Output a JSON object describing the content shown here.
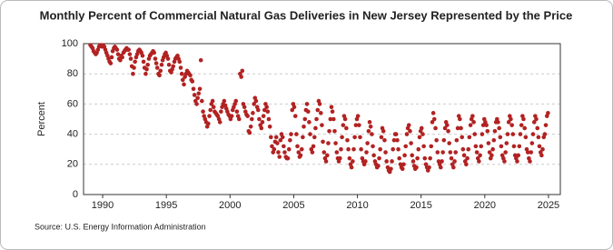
{
  "chart_data": {
    "type": "scatter",
    "title": "Monthly Percent of Commercial Natural Gas Deliveries in New Jersey Represented by the Price",
    "y_label": "Percent",
    "source": "Source: U.S. Energy Information Administration",
    "color": "#b22222",
    "grid": true,
    "xlim": [
      1988.5,
      2025.93
    ],
    "ylim": [
      0,
      100
    ],
    "xticks": [
      1990,
      1995,
      2000,
      2005,
      2010,
      2015,
      2020,
      2025
    ],
    "yticks": [
      0,
      20,
      40,
      60,
      80,
      100
    ],
    "x": [
      1989.04,
      1989.13,
      1989.21,
      1989.29,
      1989.38,
      1989.46,
      1989.54,
      1989.63,
      1989.71,
      1989.79,
      1989.88,
      1989.96,
      1990.04,
      1990.13,
      1990.21,
      1990.29,
      1990.38,
      1990.46,
      1990.54,
      1990.63,
      1990.71,
      1990.79,
      1990.88,
      1990.96,
      1991.04,
      1991.13,
      1991.21,
      1991.29,
      1991.38,
      1991.46,
      1991.54,
      1991.63,
      1991.71,
      1991.79,
      1991.88,
      1991.96,
      1992.04,
      1992.13,
      1992.21,
      1992.29,
      1992.38,
      1992.46,
      1992.54,
      1992.63,
      1992.71,
      1992.79,
      1992.88,
      1992.96,
      1993.04,
      1993.13,
      1993.21,
      1993.29,
      1993.38,
      1993.46,
      1993.54,
      1993.63,
      1993.71,
      1993.79,
      1993.88,
      1993.96,
      1994.04,
      1994.13,
      1994.21,
      1994.29,
      1994.38,
      1994.46,
      1994.54,
      1994.63,
      1994.71,
      1994.79,
      1994.88,
      1994.96,
      1995.04,
      1995.13,
      1995.21,
      1995.29,
      1995.38,
      1995.46,
      1995.54,
      1995.63,
      1995.71,
      1995.79,
      1995.88,
      1995.96,
      1996.04,
      1996.13,
      1996.21,
      1996.29,
      1996.38,
      1996.46,
      1996.54,
      1996.63,
      1996.71,
      1996.79,
      1996.88,
      1996.96,
      1997.04,
      1997.13,
      1997.21,
      1997.29,
      1997.38,
      1997.46,
      1997.54,
      1997.63,
      1997.71,
      1997.79,
      1997.88,
      1997.96,
      1998.04,
      1998.13,
      1998.21,
      1998.29,
      1998.38,
      1998.46,
      1998.54,
      1998.63,
      1998.71,
      1998.79,
      1998.88,
      1998.96,
      1999.04,
      1999.13,
      1999.21,
      1999.29,
      1999.38,
      1999.46,
      1999.54,
      1999.63,
      1999.71,
      1999.79,
      1999.88,
      1999.96,
      2000.04,
      2000.13,
      2000.21,
      2000.29,
      2000.38,
      2000.46,
      2000.54,
      2000.63,
      2000.71,
      2000.79,
      2000.88,
      2000.96,
      2001.04,
      2001.13,
      2001.21,
      2001.29,
      2001.38,
      2001.46,
      2001.54,
      2001.63,
      2001.71,
      2001.79,
      2001.88,
      2001.96,
      2002.04,
      2002.13,
      2002.21,
      2002.29,
      2002.38,
      2002.46,
      2002.54,
      2002.63,
      2002.71,
      2002.79,
      2002.88,
      2002.96,
      2003.04,
      2003.13,
      2003.21,
      2003.29,
      2003.38,
      2003.46,
      2003.54,
      2003.63,
      2003.71,
      2003.79,
      2003.88,
      2003.96,
      2004.04,
      2004.13,
      2004.21,
      2004.29,
      2004.38,
      2004.46,
      2004.54,
      2004.63,
      2004.71,
      2004.79,
      2004.88,
      2004.96,
      2005.04,
      2005.13,
      2005.21,
      2005.29,
      2005.38,
      2005.46,
      2005.54,
      2005.63,
      2005.71,
      2005.79,
      2005.88,
      2005.96,
      2006.04,
      2006.13,
      2006.21,
      2006.29,
      2006.38,
      2006.46,
      2006.54,
      2006.63,
      2006.71,
      2006.79,
      2006.88,
      2006.96,
      2007.04,
      2007.13,
      2007.21,
      2007.29,
      2007.38,
      2007.46,
      2007.54,
      2007.63,
      2007.71,
      2007.79,
      2007.88,
      2007.96,
      2008.04,
      2008.13,
      2008.21,
      2008.29,
      2008.38,
      2008.46,
      2008.54,
      2008.63,
      2008.71,
      2008.79,
      2008.88,
      2008.96,
      2009.04,
      2009.13,
      2009.21,
      2009.29,
      2009.38,
      2009.46,
      2009.54,
      2009.63,
      2009.71,
      2009.79,
      2009.88,
      2009.96,
      2010.04,
      2010.13,
      2010.21,
      2010.29,
      2010.38,
      2010.46,
      2010.54,
      2010.63,
      2010.71,
      2010.79,
      2010.88,
      2010.96,
      2011.04,
      2011.13,
      2011.21,
      2011.29,
      2011.38,
      2011.46,
      2011.54,
      2011.63,
      2011.71,
      2011.79,
      2011.88,
      2011.96,
      2012.04,
      2012.13,
      2012.21,
      2012.29,
      2012.38,
      2012.46,
      2012.54,
      2012.63,
      2012.71,
      2012.79,
      2012.88,
      2012.96,
      2013.04,
      2013.13,
      2013.21,
      2013.29,
      2013.38,
      2013.46,
      2013.54,
      2013.63,
      2013.71,
      2013.79,
      2013.88,
      2013.96,
      2014.04,
      2014.13,
      2014.21,
      2014.29,
      2014.38,
      2014.46,
      2014.54,
      2014.63,
      2014.71,
      2014.79,
      2014.88,
      2014.96,
      2015.04,
      2015.13,
      2015.21,
      2015.29,
      2015.38,
      2015.46,
      2015.54,
      2015.63,
      2015.71,
      2015.79,
      2015.88,
      2015.96,
      2016.04,
      2016.13,
      2016.21,
      2016.29,
      2016.38,
      2016.46,
      2016.54,
      2016.63,
      2016.71,
      2016.79,
      2016.88,
      2016.96,
      2017.04,
      2017.13,
      2017.21,
      2017.29,
      2017.38,
      2017.46,
      2017.54,
      2017.63,
      2017.71,
      2017.79,
      2017.88,
      2017.96,
      2018.04,
      2018.13,
      2018.21,
      2018.29,
      2018.38,
      2018.46,
      2018.54,
      2018.63,
      2018.71,
      2018.79,
      2018.88,
      2018.96,
      2019.04,
      2019.13,
      2019.21,
      2019.29,
      2019.38,
      2019.46,
      2019.54,
      2019.63,
      2019.71,
      2019.79,
      2019.88,
      2019.96,
      2020.04,
      2020.13,
      2020.21,
      2020.29,
      2020.38,
      2020.46,
      2020.54,
      2020.63,
      2020.71,
      2020.79,
      2020.88,
      2020.96,
      2021.04,
      2021.13,
      2021.21,
      2021.29,
      2021.38,
      2021.46,
      2021.54,
      2021.63,
      2021.71,
      2021.79,
      2021.88,
      2021.96,
      2022.04,
      2022.13,
      2022.21,
      2022.29,
      2022.38,
      2022.46,
      2022.54,
      2022.63,
      2022.71,
      2022.79,
      2022.88,
      2022.96,
      2023.04,
      2023.13,
      2023.21,
      2023.29,
      2023.38,
      2023.46,
      2023.54,
      2023.63,
      2023.71,
      2023.79,
      2023.88,
      2023.96,
      2024.04,
      2024.13,
      2024.21,
      2024.29,
      2024.38,
      2024.46,
      2024.54,
      2024.63,
      2024.71,
      2024.79,
      2024.88,
      2024.96
    ],
    "values": [
      99,
      98,
      97,
      95,
      94,
      93,
      94,
      96,
      98,
      99,
      99,
      98,
      99,
      98,
      96,
      94,
      92,
      90,
      88,
      87,
      91,
      95,
      97,
      98,
      97,
      96,
      93,
      90,
      89,
      92,
      91,
      94,
      95,
      96,
      97,
      96,
      96,
      93,
      90,
      85,
      80,
      84,
      88,
      91,
      93,
      95,
      96,
      95,
      94,
      92,
      88,
      84,
      80,
      83,
      86,
      90,
      92,
      93,
      94,
      95,
      94,
      90,
      87,
      84,
      80,
      79,
      82,
      86,
      89,
      91,
      93,
      94,
      92,
      90,
      86,
      82,
      81,
      83,
      85,
      88,
      90,
      91,
      92,
      90,
      88,
      84,
      80,
      76,
      73,
      78,
      80,
      82,
      81,
      80,
      79,
      76,
      75,
      70,
      66,
      62,
      60,
      64,
      67,
      70,
      89,
      62,
      55,
      52,
      50,
      48,
      45,
      47,
      52,
      56,
      60,
      62,
      58,
      55,
      54,
      53,
      52,
      50,
      48,
      55,
      58,
      60,
      62,
      59,
      57,
      55,
      53,
      52,
      50,
      52,
      56,
      58,
      60,
      62,
      55,
      52,
      50,
      80,
      78,
      82,
      60,
      58,
      55,
      53,
      52,
      42,
      41,
      45,
      50,
      54,
      60,
      64,
      62,
      58,
      56,
      50,
      46,
      44,
      48,
      52,
      56,
      60,
      58,
      55,
      50,
      45,
      38,
      32,
      28,
      30,
      35,
      38,
      34,
      28,
      25,
      36,
      40,
      38,
      32,
      28,
      25,
      24,
      24,
      30,
      36,
      40,
      56,
      60,
      58,
      52,
      40,
      32,
      28,
      25,
      26,
      30,
      38,
      45,
      50,
      56,
      60,
      55,
      48,
      40,
      30,
      28,
      32,
      38,
      44,
      50,
      56,
      62,
      60,
      54,
      46,
      35,
      28,
      24,
      22,
      26,
      34,
      42,
      50,
      58,
      55,
      50,
      42,
      34,
      28,
      24,
      22,
      24,
      30,
      38,
      46,
      52,
      50,
      44,
      36,
      30,
      24,
      20,
      18,
      22,
      30,
      38,
      46,
      50,
      52,
      46,
      38,
      30,
      24,
      22,
      20,
      22,
      28,
      34,
      42,
      48,
      45,
      40,
      32,
      26,
      22,
      20,
      18,
      19,
      24,
      30,
      38,
      44,
      42,
      36,
      28,
      22,
      18,
      16,
      15,
      17,
      22,
      30,
      36,
      40,
      40,
      36,
      30,
      24,
      20,
      18,
      17,
      20,
      26,
      32,
      40,
      44,
      46,
      42,
      34,
      26,
      22,
      19,
      17,
      18,
      24,
      30,
      38,
      42,
      44,
      40,
      32,
      24,
      20,
      18,
      16,
      18,
      24,
      32,
      48,
      54,
      50,
      44,
      36,
      28,
      22,
      20,
      18,
      22,
      28,
      36,
      44,
      48,
      46,
      42,
      34,
      28,
      24,
      20,
      18,
      22,
      28,
      36,
      44,
      52,
      50,
      44,
      38,
      30,
      26,
      22,
      20,
      24,
      30,
      38,
      46,
      50,
      52,
      48,
      40,
      32,
      28,
      24,
      22,
      26,
      32,
      40,
      46,
      50,
      48,
      46,
      42,
      34,
      28,
      24,
      26,
      30,
      36,
      42,
      48,
      50,
      48,
      44,
      38,
      32,
      26,
      24,
      22,
      28,
      34,
      40,
      48,
      52,
      50,
      46,
      40,
      32,
      26,
      24,
      22,
      26,
      32,
      40,
      46,
      52,
      50,
      44,
      38,
      30,
      28,
      24,
      22,
      28,
      34,
      40,
      48,
      52,
      50,
      44,
      38,
      32,
      28,
      26,
      30,
      38,
      40,
      46,
      52,
      54
    ]
  }
}
